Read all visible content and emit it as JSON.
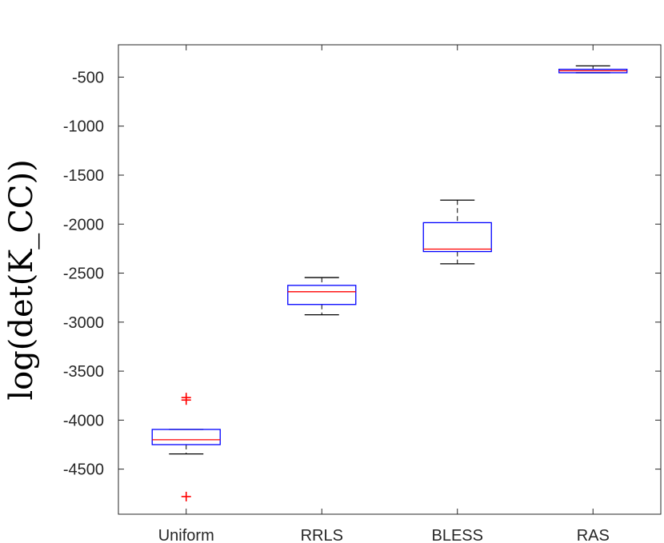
{
  "chart_data": {
    "type": "boxplot",
    "ylabel": "log(det(K_CC))",
    "categories": [
      "Uniform",
      "RRLS",
      "BLESS",
      "RAS"
    ],
    "ylim": [
      -4960,
      -170
    ],
    "yticks": [
      -500,
      -1000,
      -1500,
      -2000,
      -2500,
      -3000,
      -3500,
      -4000,
      -4500
    ],
    "ytick_labels": [
      "-500",
      "-1000",
      "-1500",
      "-2000",
      "-2500",
      "-3000",
      "-3500",
      "-4000",
      "-4500"
    ],
    "grid": false,
    "boxes": [
      {
        "category": "Uniform",
        "whisker_low": -4345,
        "q1": -4250,
        "median": -4200,
        "q3": -4095,
        "whisker_high": -4095,
        "outliers": [
          -3770,
          -3795,
          -4780
        ]
      },
      {
        "category": "RRLS",
        "whisker_low": -2925,
        "q1": -2820,
        "median": -2690,
        "q3": -2625,
        "whisker_high": -2545,
        "outliers": []
      },
      {
        "category": "BLESS",
        "whisker_low": -2405,
        "q1": -2280,
        "median": -2255,
        "q3": -1985,
        "whisker_high": -1755,
        "outliers": []
      },
      {
        "category": "RAS",
        "whisker_low": -455,
        "q1": -455,
        "median": -435,
        "q3": -420,
        "whisker_high": -385,
        "outliers": []
      }
    ],
    "colors": {
      "box": "#0000ff",
      "median": "#ff0000",
      "whisker": "#000000",
      "outlier": "#ff0000",
      "axis": "#262626"
    }
  }
}
